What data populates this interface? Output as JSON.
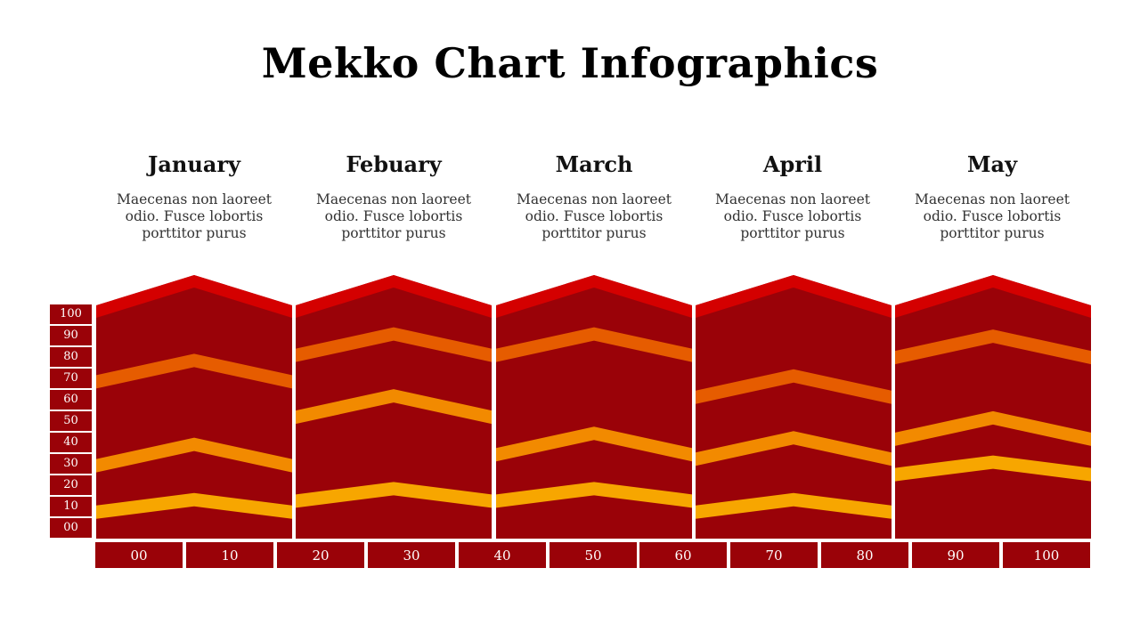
{
  "title": "Mekko Chart Infographics",
  "columns": [
    {
      "name": "January",
      "desc": "Maecenas non laoreet odio. Fusce lobortis porttitor purus"
    },
    {
      "name": "Febuary",
      "desc": "Maecenas non laoreet odio. Fusce lobortis porttitor purus"
    },
    {
      "name": "March",
      "desc": "Maecenas non laoreet odio. Fusce lobortis porttitor purus"
    },
    {
      "name": "April",
      "desc": "Maecenas non laoreet odio. Fusce lobortis porttitor purus"
    },
    {
      "name": "May",
      "desc": "Maecenas non laoreet odio. Fusce lobortis porttitor purus"
    }
  ],
  "y_ticks": [
    "100",
    "90",
    "80",
    "70",
    "60",
    "50",
    "40",
    "30",
    "20",
    "10",
    "00"
  ],
  "x_ticks": [
    "00",
    "10",
    "20",
    "30",
    "40",
    "50",
    "60",
    "70",
    "80",
    "90",
    "100"
  ],
  "colors": {
    "body": "#9a0208",
    "cap": "#d40000",
    "band_dark_orange": "#e65c00",
    "band_orange": "#f28a00",
    "band_amber": "#f7a600",
    "label_bg": "#9a0208"
  },
  "chart_data": {
    "type": "bar",
    "categories": [
      "January",
      "Febuary",
      "March",
      "April",
      "May"
    ],
    "ylim": [
      0,
      100
    ],
    "xlim": [
      0,
      100
    ],
    "boundaries": [
      [
        71,
        33,
        12
      ],
      [
        83,
        55,
        17
      ],
      [
        83,
        38,
        17
      ],
      [
        64,
        36,
        12
      ],
      [
        82,
        45,
        29
      ]
    ]
  }
}
